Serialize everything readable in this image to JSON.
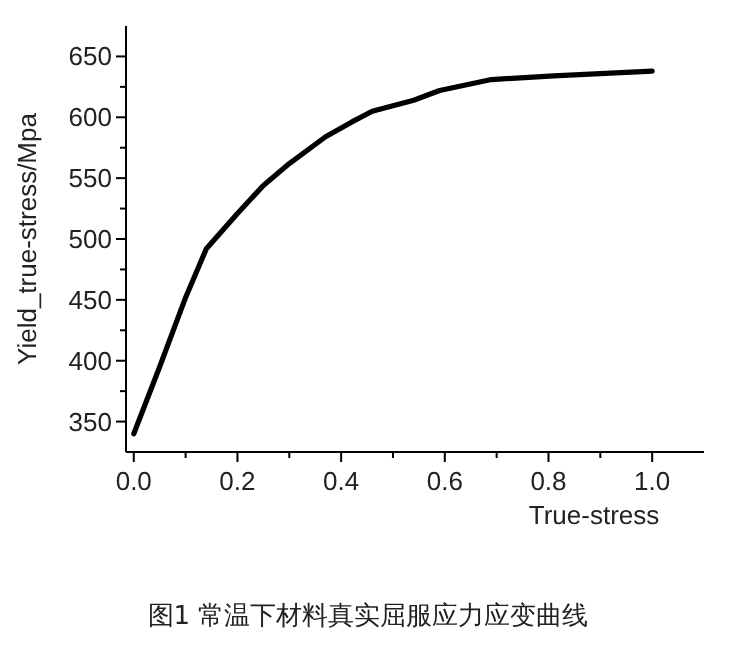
{
  "chart_data": {
    "type": "line",
    "xlabel": "True-stress",
    "ylabel": "Yield_true-stress/Mpa",
    "annotations": [
      "图1 常温下材料真实屈服应力应变曲线"
    ],
    "x": [
      0,
      0.05,
      0.1,
      0.14,
      0.2,
      0.25,
      0.3,
      0.37,
      0.42,
      0.46,
      0.54,
      0.59,
      0.69,
      0.81,
      1.0
    ],
    "series": [
      {
        "color": "#000000",
        "values": [
          340,
          395,
          452,
          492,
          521,
          544,
          562,
          584,
          596,
          605,
          614,
          622,
          631,
          634,
          638
        ]
      }
    ],
    "xlim": [
      -0.015,
      1.1
    ],
    "ylim": [
      325,
      675
    ],
    "xticks": [
      {
        "value": 0,
        "label": "0.0"
      },
      {
        "value": 0.1,
        "label": null
      },
      0.2,
      {
        "value": 0.3,
        "label": null
      },
      0.4,
      {
        "value": 0.5,
        "label": null
      },
      0.6,
      {
        "value": 0.7,
        "label": null
      },
      0.8,
      {
        "value": 0.9,
        "label": null
      },
      {
        "value": 1,
        "label": "1.0"
      }
    ],
    "yticks": [
      350,
      {
        "value": 375,
        "label": null
      },
      400,
      {
        "value": 425,
        "label": null
      },
      450,
      {
        "value": 475,
        "label": null
      },
      500,
      {
        "value": 525,
        "label": null
      },
      550,
      {
        "value": 575,
        "label": null
      },
      600,
      {
        "value": 625,
        "label": null
      },
      650
    ]
  }
}
